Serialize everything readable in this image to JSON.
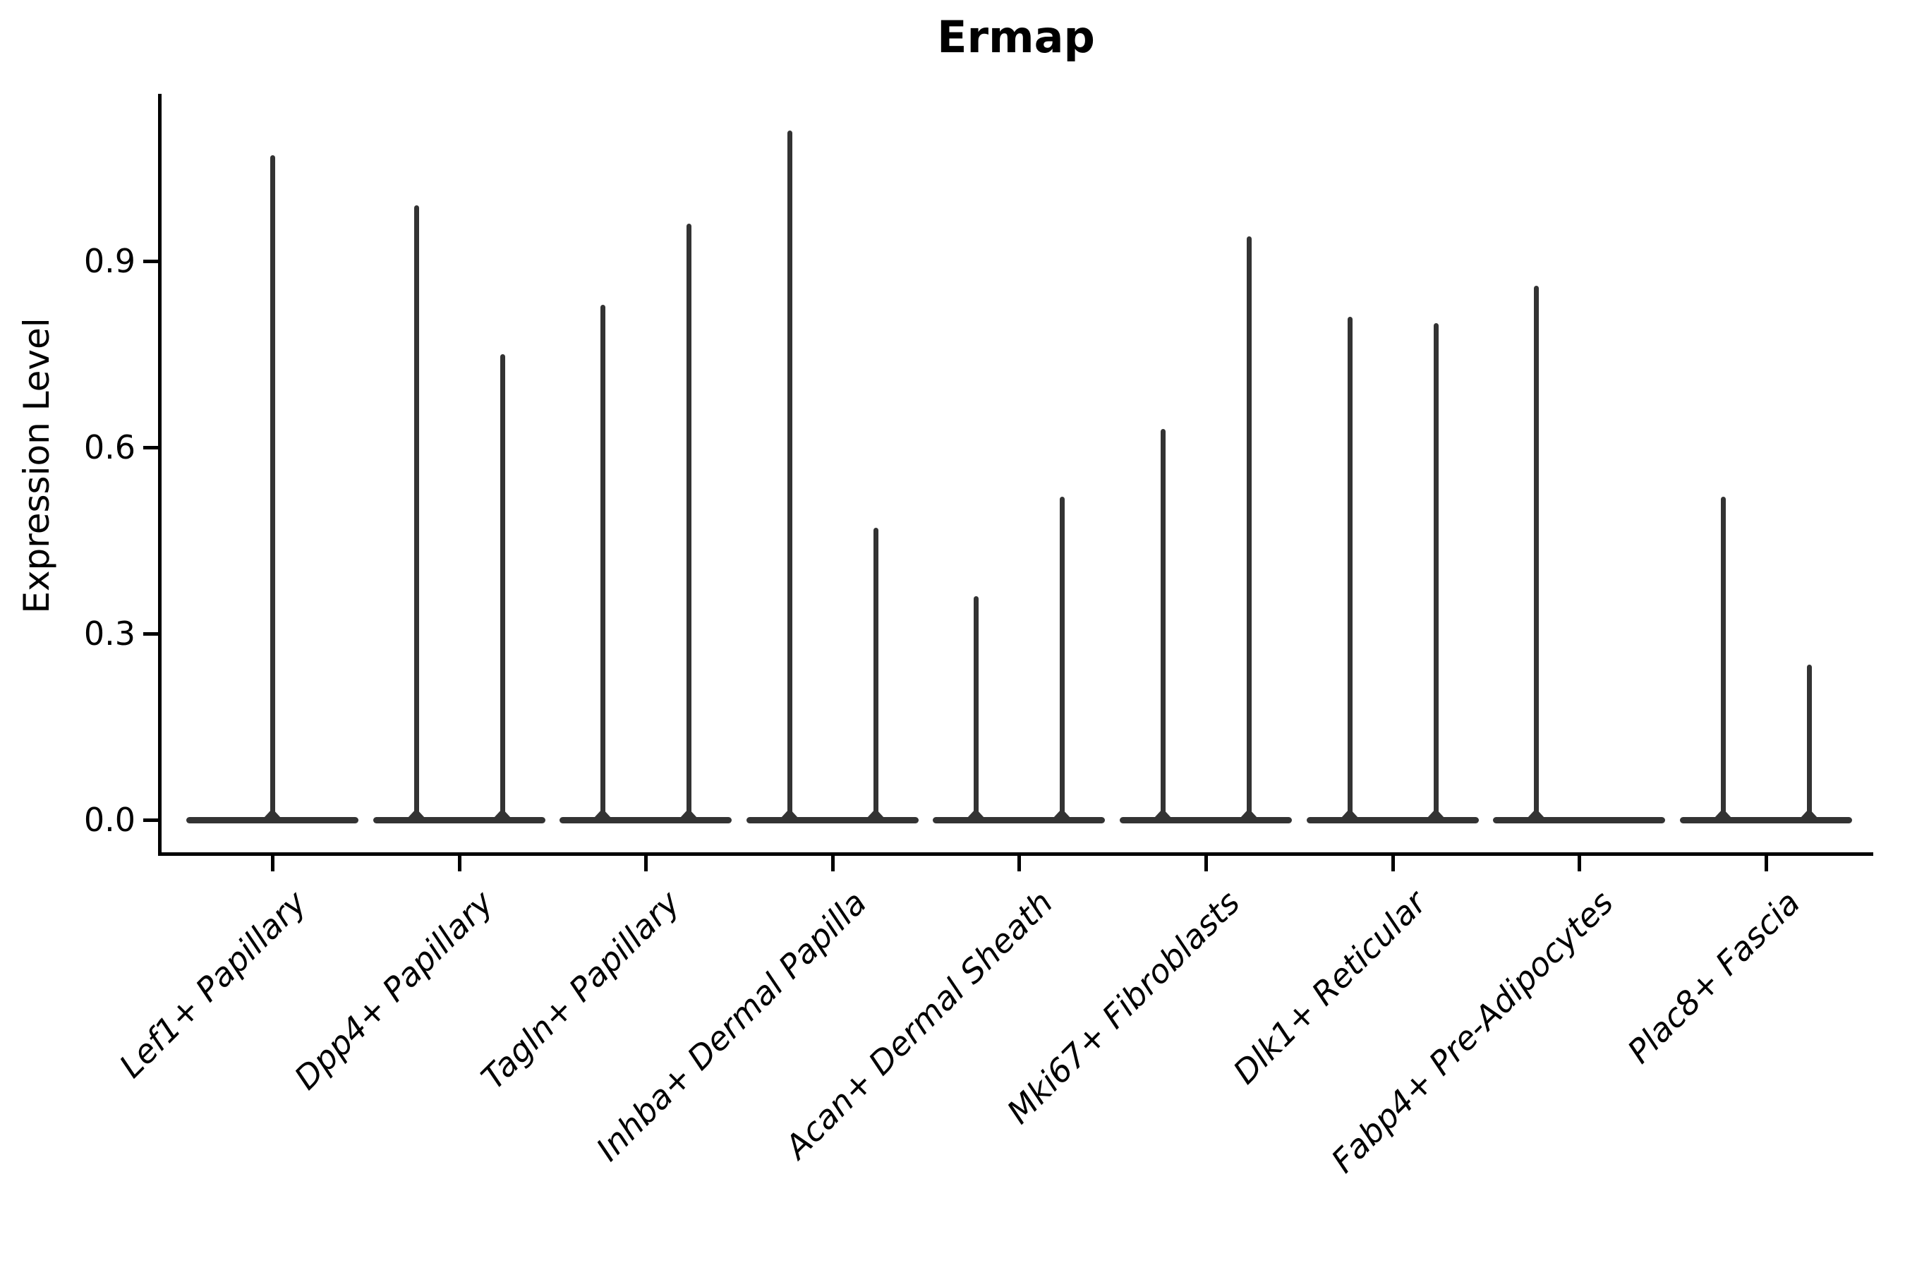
{
  "title": "Ermap",
  "chart_data": {
    "type": "violin",
    "title": "Ermap",
    "xlabel": "",
    "ylabel": "Expression Level",
    "ylim": [
      0,
      1.17
    ],
    "yticks": [
      0.0,
      0.3,
      0.6,
      0.9
    ],
    "ytick_labels": [
      "0.0",
      "0.3",
      "0.6",
      "0.9"
    ],
    "grid": false,
    "legend": "none",
    "categories": [
      "Lef1+ Papillary",
      "Dpp4+ Papillary",
      "Tagln+ Papillary",
      "Inhba+ Dermal Papilla",
      "Acan+ Dermal Sheath",
      "Mki67+ Fibroblasts",
      "Dlk1+ Reticular",
      "Fabp4+ Pre-Adipocytes",
      "Plac8+ Fascia"
    ],
    "violins": [
      {
        "category": "Lef1+ Papillary",
        "spikes": [
          {
            "slot": 0,
            "max": 1.07
          }
        ]
      },
      {
        "category": "Dpp4+ Papillary",
        "spikes": [
          {
            "slot": -1,
            "max": 0.99
          },
          {
            "slot": 1,
            "max": 0.75
          }
        ]
      },
      {
        "category": "Tagln+ Papillary",
        "spikes": [
          {
            "slot": -1,
            "max": 0.83
          },
          {
            "slot": 1,
            "max": 0.96
          }
        ]
      },
      {
        "category": "Inhba+ Dermal Papilla",
        "spikes": [
          {
            "slot": -1,
            "max": 1.11
          },
          {
            "slot": 1,
            "max": 0.47
          }
        ]
      },
      {
        "category": "Acan+ Dermal Sheath",
        "spikes": [
          {
            "slot": -1,
            "max": 0.36
          },
          {
            "slot": 1,
            "max": 0.52
          }
        ]
      },
      {
        "category": "Mki67+ Fibroblasts",
        "spikes": [
          {
            "slot": -1,
            "max": 0.63
          },
          {
            "slot": 1,
            "max": 0.94
          }
        ]
      },
      {
        "category": "Dlk1+ Reticular",
        "spikes": [
          {
            "slot": -1,
            "max": 0.81
          },
          {
            "slot": 1,
            "max": 0.8
          }
        ]
      },
      {
        "category": "Fabp4+ Pre-Adipocytes",
        "spikes": [
          {
            "slot": -1,
            "max": 0.86
          }
        ]
      },
      {
        "category": "Plac8+ Fascia",
        "spikes": [
          {
            "slot": -1,
            "max": 0.52
          },
          {
            "slot": 1,
            "max": 0.25
          }
        ]
      }
    ],
    "style": {
      "violin_color": "#333333",
      "axis_color": "#000000",
      "background": "#ffffff",
      "baseline_value": 0.0
    }
  }
}
